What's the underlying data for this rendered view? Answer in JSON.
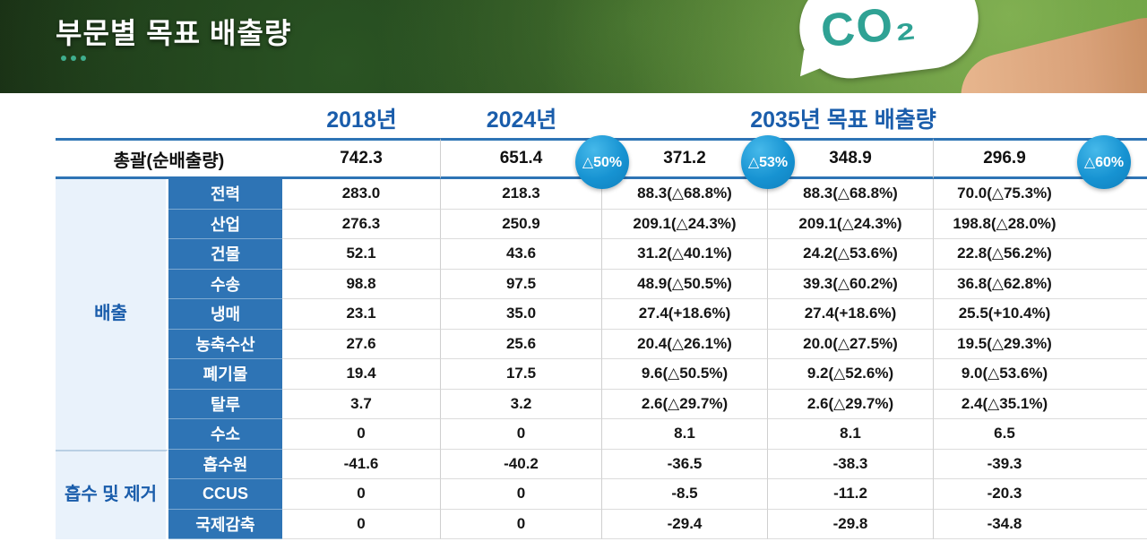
{
  "header": {
    "title": "부문별 목표 배출량",
    "co2_label": "CO₂"
  },
  "table": {
    "col_headers": [
      "2018년",
      "2024년",
      "2035년 목표 배출량"
    ],
    "total_row": {
      "label": "총괄(순배출량)",
      "values": [
        "742.3",
        "651.4",
        "371.2",
        "348.9",
        "296.9"
      ]
    },
    "badges": [
      "△50%",
      "△53%",
      "△60%"
    ],
    "groups": [
      {
        "label": "배출",
        "rows": [
          {
            "label": "전력",
            "values": [
              "283.0",
              "218.3",
              "88.3(△68.8%)",
              "88.3(△68.8%)",
              "70.0(△75.3%)"
            ]
          },
          {
            "label": "산업",
            "values": [
              "276.3",
              "250.9",
              "209.1(△24.3%)",
              "209.1(△24.3%)",
              "198.8(△28.0%)"
            ]
          },
          {
            "label": "건물",
            "values": [
              "52.1",
              "43.6",
              "31.2(△40.1%)",
              "24.2(△53.6%)",
              "22.8(△56.2%)"
            ]
          },
          {
            "label": "수송",
            "values": [
              "98.8",
              "97.5",
              "48.9(△50.5%)",
              "39.3(△60.2%)",
              "36.8(△62.8%)"
            ]
          },
          {
            "label": "냉매",
            "values": [
              "23.1",
              "35.0",
              "27.4(+18.6%)",
              "27.4(+18.6%)",
              "25.5(+10.4%)"
            ]
          },
          {
            "label": "농축수산",
            "values": [
              "27.6",
              "25.6",
              "20.4(△26.1%)",
              "20.0(△27.5%)",
              "19.5(△29.3%)"
            ]
          },
          {
            "label": "폐기물",
            "values": [
              "19.4",
              "17.5",
              "9.6(△50.5%)",
              "9.2(△52.6%)",
              "9.0(△53.6%)"
            ]
          },
          {
            "label": "탈루",
            "values": [
              "3.7",
              "3.2",
              "2.6(△29.7%)",
              "2.6(△29.7%)",
              "2.4(△35.1%)"
            ]
          },
          {
            "label": "수소",
            "values": [
              "0",
              "0",
              "8.1",
              "8.1",
              "6.5"
            ]
          }
        ]
      },
      {
        "label": "흡수 및 제거",
        "rows": [
          {
            "label": "흡수원",
            "values": [
              "-41.6",
              "-40.2",
              "-36.5",
              "-38.3",
              "-39.3"
            ]
          },
          {
            "label": "CCUS",
            "values": [
              "0",
              "0",
              "-8.5",
              "-11.2",
              "-20.3"
            ]
          },
          {
            "label": "국제감축",
            "values": [
              "0",
              "0",
              "-29.4",
              "-29.8",
              "-34.8"
            ]
          }
        ]
      }
    ]
  }
}
